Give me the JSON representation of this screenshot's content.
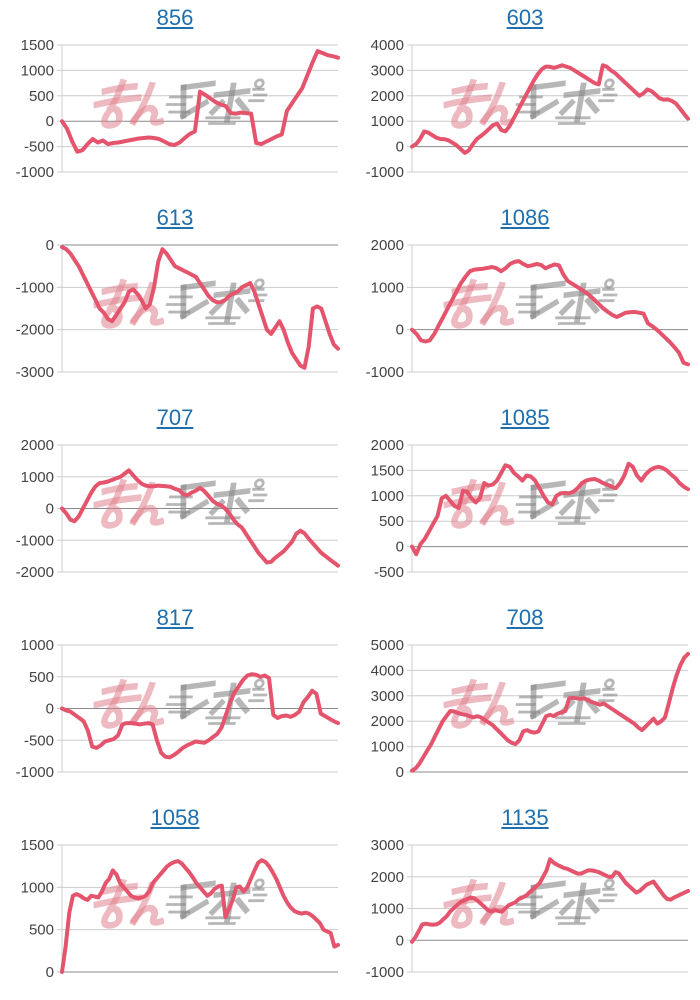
{
  "page": {
    "description": "Grid of 10 pachinko slump graphs (daily payout line charts), each titled with a machine number link",
    "watermark_text": "みんレポ",
    "grid": "horizontal gridlines on, no x-axis labels, no legend"
  },
  "colors": {
    "line": "#e4556d",
    "link": "#1f6fae",
    "grid": "#cccccc",
    "zero_line": "#8a8a8a",
    "tick_text": "#444444",
    "watermark_pink": "rgba(224,130,142,0.55)",
    "watermark_gray": "rgba(135,135,135,0.60)"
  },
  "chart_data": [
    {
      "type": "line",
      "title": "856",
      "xlabel": "",
      "ylabel": "",
      "legend": "none",
      "ylim": [
        -1000,
        1500
      ],
      "yticks": [
        1500,
        1000,
        500,
        0,
        -500,
        -1000
      ],
      "values": [
        0,
        -150,
        -400,
        -600,
        -570,
        -450,
        -350,
        -420,
        -380,
        -450,
        -430,
        -420,
        -400,
        -380,
        -360,
        -340,
        -330,
        -320,
        -330,
        -350,
        -400,
        -450,
        -470,
        -420,
        -330,
        -250,
        -200,
        580,
        520,
        450,
        380,
        330,
        300,
        160,
        150,
        170,
        160,
        150,
        -430,
        -450,
        -400,
        -350,
        -300,
        -260,
        200,
        350,
        500,
        650,
        900,
        1150,
        1380,
        1340,
        1300,
        1280,
        1250
      ]
    },
    {
      "type": "line",
      "title": "603",
      "xlabel": "",
      "ylabel": "",
      "legend": "none",
      "ylim": [
        -1000,
        4000
      ],
      "yticks": [
        4000,
        3000,
        2000,
        1000,
        0,
        -1000
      ],
      "values": [
        0,
        100,
        300,
        600,
        550,
        450,
        350,
        300,
        290,
        250,
        150,
        50,
        -100,
        -250,
        -150,
        100,
        300,
        420,
        550,
        700,
        850,
        900,
        650,
        600,
        800,
        1100,
        1400,
        1700,
        2000,
        2300,
        2600,
        2850,
        3050,
        3150,
        3140,
        3100,
        3150,
        3200,
        3150,
        3100,
        3000,
        2900,
        2800,
        2700,
        2600,
        2500,
        2450,
        3200,
        3140,
        3000,
        2900,
        2750,
        2600,
        2450,
        2300,
        2150,
        2000,
        2100,
        2250,
        2180,
        2050,
        1900,
        1850,
        1860,
        1800,
        1700,
        1500,
        1300,
        1100
      ]
    },
    {
      "type": "line",
      "title": "613",
      "xlabel": "",
      "ylabel": "",
      "legend": "none",
      "ylim": [
        -3000,
        0
      ],
      "yticks": [
        0,
        -1000,
        -2000,
        -3000
      ],
      "values": [
        -50,
        -100,
        -200,
        -350,
        -500,
        -700,
        -900,
        -1100,
        -1300,
        -1500,
        -1600,
        -1750,
        -1800,
        -1650,
        -1500,
        -1350,
        -1100,
        -1050,
        -1150,
        -1300,
        -1500,
        -1400,
        -1000,
        -400,
        -100,
        -200,
        -350,
        -500,
        -550,
        -600,
        -650,
        -700,
        -750,
        -900,
        -1050,
        -1200,
        -1300,
        -1350,
        -1350,
        -1300,
        -1200,
        -1150,
        -1100,
        -1000,
        -950,
        -900,
        -1100,
        -1400,
        -1700,
        -2000,
        -2100,
        -1950,
        -1800,
        -2000,
        -2300,
        -2550,
        -2700,
        -2850,
        -2900,
        -2400,
        -1500,
        -1450,
        -1500,
        -1800,
        -2100,
        -2350,
        -2450
      ]
    },
    {
      "type": "line",
      "title": "1086",
      "xlabel": "",
      "ylabel": "",
      "legend": "none",
      "ylim": [
        -1000,
        2000
      ],
      "yticks": [
        2000,
        1000,
        0,
        -1000
      ],
      "values": [
        0,
        -100,
        -250,
        -280,
        -250,
        -100,
        100,
        300,
        500,
        700,
        900,
        1100,
        1250,
        1380,
        1420,
        1430,
        1440,
        1460,
        1480,
        1450,
        1380,
        1450,
        1550,
        1600,
        1620,
        1550,
        1500,
        1520,
        1550,
        1530,
        1450,
        1500,
        1540,
        1520,
        1300,
        1150,
        1080,
        1020,
        950,
        880,
        800,
        700,
        600,
        500,
        420,
        350,
        300,
        350,
        400,
        410,
        420,
        400,
        380,
        150,
        80,
        0,
        -100,
        -200,
        -300,
        -420,
        -550,
        -780,
        -820
      ]
    },
    {
      "type": "line",
      "title": "707",
      "xlabel": "",
      "ylabel": "",
      "legend": "none",
      "ylim": [
        -2000,
        2000
      ],
      "yticks": [
        2000,
        1000,
        0,
        -1000,
        -2000
      ],
      "values": [
        0,
        -150,
        -350,
        -400,
        -250,
        0,
        250,
        500,
        700,
        800,
        820,
        850,
        900,
        950,
        1000,
        1100,
        1200,
        1050,
        900,
        780,
        720,
        700,
        700,
        720,
        710,
        700,
        680,
        620,
        580,
        450,
        420,
        500,
        560,
        650,
        550,
        400,
        250,
        150,
        100,
        0,
        -150,
        -350,
        -500,
        -600,
        -800,
        -1000,
        -1200,
        -1400,
        -1550,
        -1700,
        -1680,
        -1550,
        -1450,
        -1350,
        -1200,
        -1050,
        -800,
        -700,
        -780,
        -950,
        -1100,
        -1250,
        -1400,
        -1500,
        -1600,
        -1700,
        -1800
      ]
    },
    {
      "type": "line",
      "title": "1085",
      "xlabel": "",
      "ylabel": "",
      "legend": "none",
      "ylim": [
        -500,
        2000
      ],
      "yticks": [
        2000,
        1500,
        1000,
        500,
        0,
        -500
      ],
      "values": [
        0,
        -150,
        50,
        150,
        300,
        450,
        600,
        950,
        1000,
        900,
        800,
        760,
        1100,
        1080,
        950,
        870,
        950,
        1250,
        1200,
        1220,
        1300,
        1450,
        1600,
        1570,
        1450,
        1380,
        1300,
        1400,
        1380,
        1300,
        1150,
        1000,
        870,
        830,
        1000,
        1050,
        1060,
        1050,
        1080,
        1150,
        1250,
        1300,
        1320,
        1330,
        1300,
        1250,
        1220,
        1180,
        1150,
        1250,
        1400,
        1630,
        1570,
        1400,
        1300,
        1420,
        1500,
        1550,
        1570,
        1550,
        1500,
        1420,
        1350,
        1250,
        1180,
        1130
      ]
    },
    {
      "type": "line",
      "title": "817",
      "xlabel": "",
      "ylabel": "",
      "legend": "none",
      "ylim": [
        -1000,
        1000
      ],
      "yticks": [
        1000,
        500,
        0,
        -500,
        -1000
      ],
      "values": [
        0,
        -30,
        -50,
        -100,
        -150,
        -200,
        -350,
        -600,
        -620,
        -580,
        -520,
        -500,
        -480,
        -420,
        -250,
        -230,
        -230,
        -240,
        -250,
        -240,
        -230,
        -250,
        -500,
        -700,
        -760,
        -770,
        -730,
        -680,
        -620,
        -580,
        -550,
        -520,
        -530,
        -540,
        -500,
        -450,
        -400,
        -300,
        -100,
        100,
        250,
        350,
        450,
        520,
        540,
        530,
        500,
        520,
        480,
        -100,
        -150,
        -120,
        -110,
        -130,
        -100,
        -50,
        100,
        180,
        280,
        230,
        -80,
        -120,
        -160,
        -200,
        -230
      ]
    },
    {
      "type": "line",
      "title": "708",
      "xlabel": "",
      "ylabel": "",
      "legend": "none",
      "ylim": [
        0,
        5000
      ],
      "yticks": [
        5000,
        4000,
        3000,
        2000,
        1000,
        0
      ],
      "values": [
        50,
        150,
        350,
        600,
        850,
        1100,
        1400,
        1700,
        2000,
        2200,
        2400,
        2380,
        2320,
        2280,
        2250,
        2200,
        2150,
        2200,
        2150,
        2050,
        1950,
        1850,
        1700,
        1550,
        1400,
        1250,
        1150,
        1100,
        1250,
        1600,
        1650,
        1580,
        1550,
        1600,
        1900,
        2200,
        2250,
        2200,
        2300,
        2350,
        2400,
        2900,
        2920,
        2900,
        2880,
        2900,
        2820,
        2750,
        2700,
        2650,
        2700,
        2600,
        2500,
        2400,
        2300,
        2200,
        2100,
        2000,
        1900,
        1750,
        1650,
        1800,
        1950,
        2100,
        1900,
        2000,
        2150,
        2700,
        3300,
        3800,
        4200,
        4500,
        4650
      ]
    },
    {
      "type": "line",
      "title": "1058",
      "xlabel": "",
      "ylabel": "",
      "legend": "none",
      "ylim": [
        0,
        1500
      ],
      "yticks": [
        1500,
        1000,
        500,
        0
      ],
      "values": [
        0,
        300,
        700,
        900,
        920,
        900,
        870,
        850,
        900,
        890,
        880,
        950,
        1050,
        1100,
        1200,
        1150,
        1050,
        1000,
        950,
        900,
        880,
        870,
        880,
        900,
        950,
        1050,
        1100,
        1150,
        1200,
        1250,
        1280,
        1300,
        1310,
        1280,
        1230,
        1180,
        1120,
        1050,
        1000,
        950,
        900,
        930,
        980,
        1010,
        1020,
        650,
        750,
        850,
        1000,
        1010,
        950,
        1000,
        1100,
        1200,
        1290,
        1320,
        1300,
        1250,
        1180,
        1100,
        1000,
        900,
        820,
        760,
        720,
        700,
        690,
        700,
        690,
        660,
        620,
        580,
        500,
        480,
        460,
        300,
        320
      ]
    },
    {
      "type": "line",
      "title": "1135",
      "xlabel": "",
      "ylabel": "",
      "legend": "none",
      "ylim": [
        -1000,
        3000
      ],
      "yticks": [
        3000,
        2000,
        1000,
        0,
        -1000
      ],
      "values": [
        -50,
        100,
        300,
        500,
        520,
        500,
        490,
        500,
        550,
        650,
        750,
        900,
        1000,
        1100,
        1200,
        1250,
        1300,
        1350,
        1320,
        1250,
        1150,
        1050,
        950,
        900,
        950,
        920,
        900,
        1000,
        1100,
        1150,
        1200,
        1300,
        1350,
        1400,
        1500,
        1600,
        1700,
        1800,
        2000,
        2200,
        2550,
        2450,
        2380,
        2330,
        2280,
        2250,
        2200,
        2150,
        2100,
        2100,
        2150,
        2200,
        2200,
        2180,
        2150,
        2100,
        2050,
        2000,
        2000,
        2150,
        2100,
        1950,
        1800,
        1700,
        1600,
        1500,
        1550,
        1650,
        1750,
        1800,
        1850,
        1700,
        1550,
        1400,
        1300,
        1280,
        1350,
        1400,
        1450,
        1500,
        1550
      ]
    }
  ]
}
